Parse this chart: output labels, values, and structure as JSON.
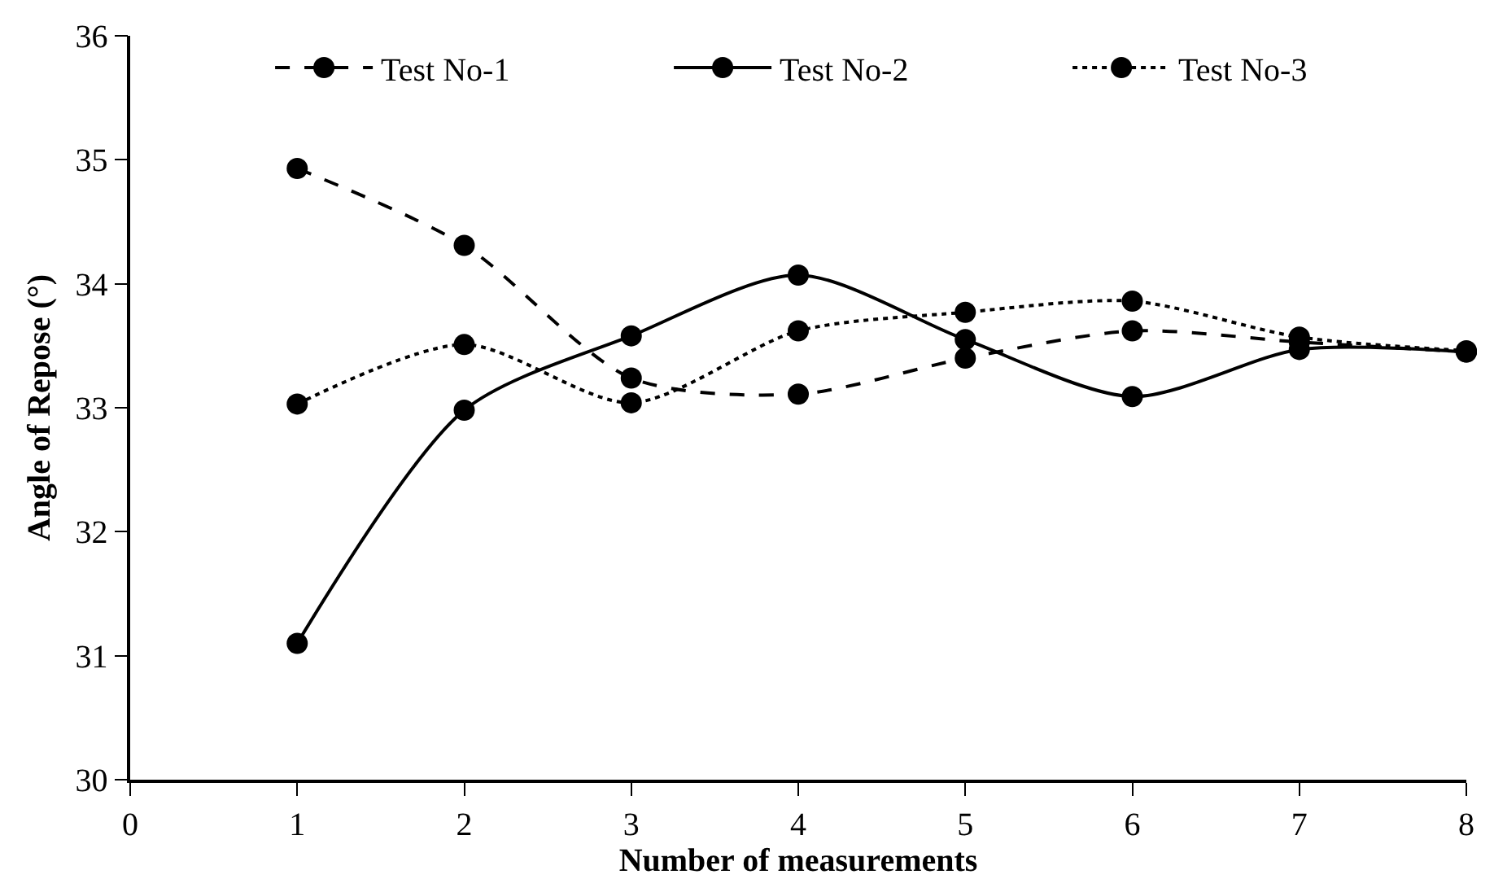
{
  "chart_data": {
    "type": "line",
    "xlabel": "Number of measurements",
    "ylabel": "Angle of Repose (°)",
    "x": [
      1,
      2,
      3,
      4,
      5,
      6,
      7,
      8
    ],
    "series": [
      {
        "name": "Test No-1",
        "color": "#000000",
        "line_style": "dashed",
        "values": [
          34.93,
          34.31,
          33.24,
          33.11,
          33.4,
          33.62,
          33.53,
          33.45
        ]
      },
      {
        "name": "Test No-2",
        "color": "#000000",
        "line_style": "solid",
        "values": [
          31.1,
          32.98,
          33.58,
          34.07,
          33.55,
          33.09,
          33.47,
          33.45
        ]
      },
      {
        "name": "Test No-3",
        "color": "#000000",
        "line_style": "dotted",
        "values": [
          33.03,
          33.51,
          33.04,
          33.62,
          33.77,
          33.86,
          33.57,
          33.46
        ]
      }
    ],
    "xlim": [
      0,
      8
    ],
    "xticks": [
      0,
      1,
      2,
      3,
      4,
      5,
      6,
      7,
      8
    ],
    "ylim": [
      30,
      36
    ],
    "yticks": [
      30,
      31,
      32,
      33,
      34,
      35,
      36
    ],
    "marker": "circle",
    "legend": "top"
  }
}
